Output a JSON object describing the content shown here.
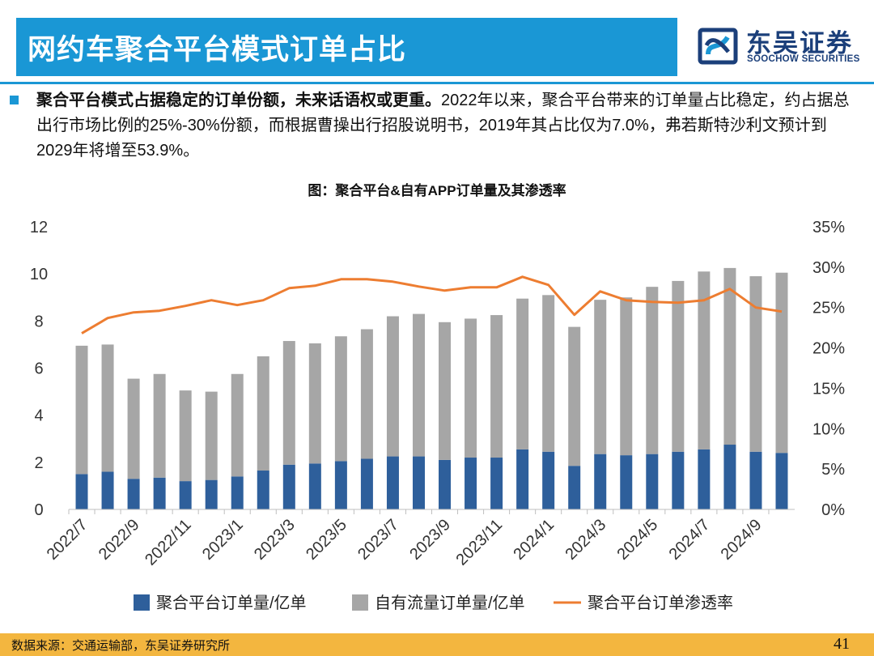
{
  "header": {
    "title": "网约车聚合平台模式订单占比",
    "logo_cn": "东吴证券",
    "logo_en": "SOOCHOW SECURITIES"
  },
  "summary": {
    "bold": "聚合平台模式占据稳定的订单份额，未来话语权或更重。",
    "text": "2022年以来，聚合平台带来的订单量占比稳定，约占据总出行市场比例的25%-30%份额，而根据曹操出行招股说明书，2019年其占比仅为7.0%，弗若斯特沙利文预计到2029年将增至53.9%。"
  },
  "colors": {
    "accent": "#1a97d5",
    "agg_bar": "#2e5f9b",
    "own_bar": "#a6a6a6",
    "line": "#ed7d31",
    "footer": "#f3b63f"
  },
  "chart_data": {
    "type": "bar",
    "title": "图：聚合平台&自有APP订单量及其渗透率",
    "categories": [
      "2022/7",
      "2022/8",
      "2022/9",
      "2022/10",
      "2022/11",
      "2022/12",
      "2023/1",
      "2023/2",
      "2023/3",
      "2023/4",
      "2023/5",
      "2023/6",
      "2023/7",
      "2023/8",
      "2023/9",
      "2023/10",
      "2023/11",
      "2023/12",
      "2024/1",
      "2024/2",
      "2024/3",
      "2024/4",
      "2024/5",
      "2024/6",
      "2024/7",
      "2024/8",
      "2024/9",
      "2024/10"
    ],
    "x_tick_labels": [
      "2022/7",
      "2022/9",
      "2022/11",
      "2023/1",
      "2023/3",
      "2023/5",
      "2023/7",
      "2023/9",
      "2023/11",
      "2024/1",
      "2024/3",
      "2024/5",
      "2024/7",
      "2024/9"
    ],
    "series": [
      {
        "name": "聚合平台订单量/亿单",
        "kind": "stacked-bar",
        "axis": "left",
        "values": [
          1.5,
          1.6,
          1.3,
          1.35,
          1.2,
          1.25,
          1.4,
          1.65,
          1.9,
          1.95,
          2.05,
          2.15,
          2.25,
          2.25,
          2.1,
          2.2,
          2.2,
          2.55,
          2.45,
          1.85,
          2.35,
          2.3,
          2.35,
          2.45,
          2.55,
          2.75,
          2.45,
          2.4
        ]
      },
      {
        "name": "自有流量订单量/亿单",
        "kind": "stacked-bar",
        "axis": "left",
        "values": [
          5.45,
          5.4,
          4.25,
          4.4,
          3.85,
          3.75,
          4.35,
          4.85,
          5.25,
          5.1,
          5.3,
          5.5,
          5.95,
          6.05,
          5.85,
          5.9,
          6.05,
          6.4,
          6.65,
          5.9,
          6.55,
          6.7,
          7.1,
          7.25,
          7.55,
          7.5,
          7.45,
          7.65
        ]
      },
      {
        "name": "聚合平台订单渗透率",
        "kind": "line",
        "axis": "right",
        "values": [
          21.8,
          23.7,
          24.4,
          24.6,
          25.2,
          25.9,
          25.3,
          25.9,
          27.4,
          27.7,
          28.5,
          28.5,
          28.2,
          27.6,
          27.1,
          27.5,
          27.5,
          28.8,
          27.8,
          24.1,
          27.0,
          25.9,
          25.7,
          25.6,
          25.9,
          27.3,
          25.0,
          24.5
        ]
      }
    ],
    "y_left": {
      "min": 0,
      "max": 12,
      "ticks": [
        0,
        2,
        4,
        6,
        8,
        10,
        12
      ]
    },
    "y_right": {
      "min": 0,
      "max": 35,
      "ticks": [
        "0%",
        "5%",
        "10%",
        "15%",
        "20%",
        "25%",
        "30%",
        "35%"
      ]
    },
    "legend_position": "bottom"
  },
  "footer": {
    "source": "数据来源：交通运输部，东吴证券研究所",
    "page": "41"
  }
}
